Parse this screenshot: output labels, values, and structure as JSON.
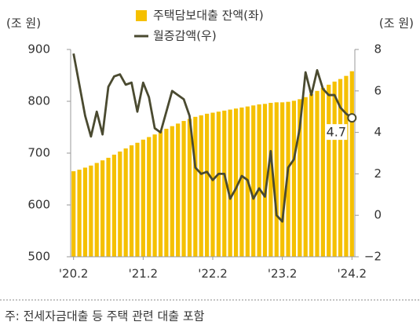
{
  "chart_data": {
    "type": "bar-line",
    "legend": "top",
    "y_unit_label": "(조 원)",
    "y2_unit_label": "(조 원)",
    "categories": [
      "'20.2",
      null,
      null,
      null,
      null,
      null,
      null,
      null,
      null,
      null,
      null,
      null,
      "'21.2",
      null,
      null,
      null,
      null,
      null,
      null,
      null,
      null,
      null,
      null,
      null,
      "'22.2",
      null,
      null,
      null,
      null,
      null,
      null,
      null,
      null,
      null,
      null,
      null,
      "'23.2",
      null,
      null,
      null,
      null,
      null,
      null,
      null,
      null,
      null,
      null,
      null,
      "'24.2"
    ],
    "series": [
      {
        "name": "주택담보대출 잔액(좌)",
        "type": "bar",
        "color": "#f5c000",
        "values": [
          665,
          668,
          672,
          676,
          681,
          686,
          691,
          697,
          703,
          709,
          715,
          720,
          726,
          731,
          736,
          742,
          747,
          752,
          757,
          762,
          766,
          770,
          773,
          776,
          778,
          780,
          782,
          784,
          786,
          788,
          790,
          792,
          794,
          795,
          797,
          798,
          798,
          799,
          801,
          804,
          808,
          814,
          820,
          826,
          832,
          838,
          843,
          849,
          858
        ]
      },
      {
        "name": "월증감액(우)",
        "type": "line",
        "axis": "y2",
        "color": "#4a4a30",
        "values": [
          7.8,
          6.3,
          4.8,
          3.8,
          5.0,
          3.9,
          6.2,
          6.7,
          6.8,
          6.3,
          6.4,
          5.0,
          6.4,
          5.7,
          4.2,
          4.0,
          5.0,
          6.0,
          5.8,
          5.6,
          4.8,
          2.3,
          2.0,
          2.1,
          1.7,
          2.0,
          2.0,
          0.8,
          1.3,
          1.9,
          1.7,
          0.8,
          1.3,
          0.9,
          3.1,
          0.0,
          -0.3,
          2.3,
          2.7,
          4.2,
          6.9,
          5.8,
          7.0,
          6.1,
          5.8,
          5.8,
          5.2,
          4.9,
          4.7
        ],
        "value_labels": [
          null,
          null,
          null,
          null,
          null,
          null,
          null,
          null,
          null,
          null,
          null,
          null,
          null,
          null,
          null,
          null,
          null,
          null,
          null,
          null,
          null,
          null,
          null,
          null,
          null,
          null,
          null,
          null,
          null,
          null,
          null,
          null,
          null,
          null,
          null,
          null,
          null,
          null,
          null,
          null,
          null,
          null,
          null,
          null,
          null,
          null,
          null,
          null,
          "4.7"
        ]
      }
    ],
    "ylim": [
      500,
      900
    ],
    "yticks": [
      500,
      600,
      700,
      800,
      900
    ],
    "y2lim": [
      -2,
      8
    ],
    "y2ticks": [
      {
        "value": -2,
        "label": "−2"
      },
      0,
      2,
      4,
      6,
      8
    ],
    "footnote": "주: 전세자금대출 등 주택 관련 대출 포함"
  }
}
